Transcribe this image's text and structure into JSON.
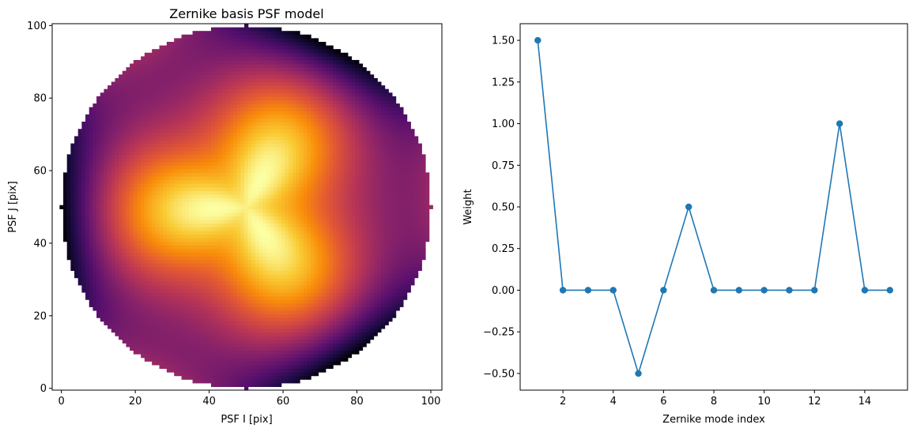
{
  "chart_data": [
    {
      "type": "heatmap",
      "title": "Zernike basis PSF model",
      "xlabel": "PSF I [pix]",
      "ylabel": "PSF J [pix]",
      "xlim": [
        -2.5,
        103
      ],
      "ylim": [
        -0.5,
        100.5
      ],
      "xticks": [
        0,
        20,
        40,
        60,
        80,
        100
      ],
      "yticks": [
        0,
        20,
        40,
        60,
        80,
        100
      ],
      "colormap": "inferno",
      "grid": false,
      "aperture": {
        "center": [
          50,
          50
        ],
        "radius": 50
      },
      "zernike_weights": [
        1.5,
        0,
        0,
        0,
        -0.5,
        0,
        0.5,
        0,
        0,
        0,
        0,
        0,
        1.0,
        0,
        0
      ]
    },
    {
      "type": "line",
      "title": "",
      "xlabel": "Zernike mode index",
      "ylabel": "Weight",
      "x": [
        1,
        2,
        3,
        4,
        5,
        6,
        7,
        8,
        9,
        10,
        11,
        12,
        13,
        14,
        15
      ],
      "series": [
        {
          "values": [
            1.5,
            0,
            0,
            0,
            -0.5,
            0,
            0.5,
            0,
            0,
            0,
            0,
            0,
            1.0,
            0,
            0
          ],
          "color": "#1f77b4",
          "marker": "circle"
        }
      ],
      "xlim": [
        0.3,
        15.7
      ],
      "ylim": [
        -0.6,
        1.6
      ],
      "xticks": [
        2,
        4,
        6,
        8,
        10,
        12,
        14
      ],
      "yticks": [
        -0.5,
        -0.25,
        0.0,
        0.25,
        0.5,
        0.75,
        1.0,
        1.25,
        1.5
      ],
      "ytick_labels": [
        "−0.50",
        "−0.25",
        "0.00",
        "0.25",
        "0.50",
        "0.75",
        "1.00",
        "1.25",
        "1.50"
      ],
      "grid": false
    }
  ]
}
